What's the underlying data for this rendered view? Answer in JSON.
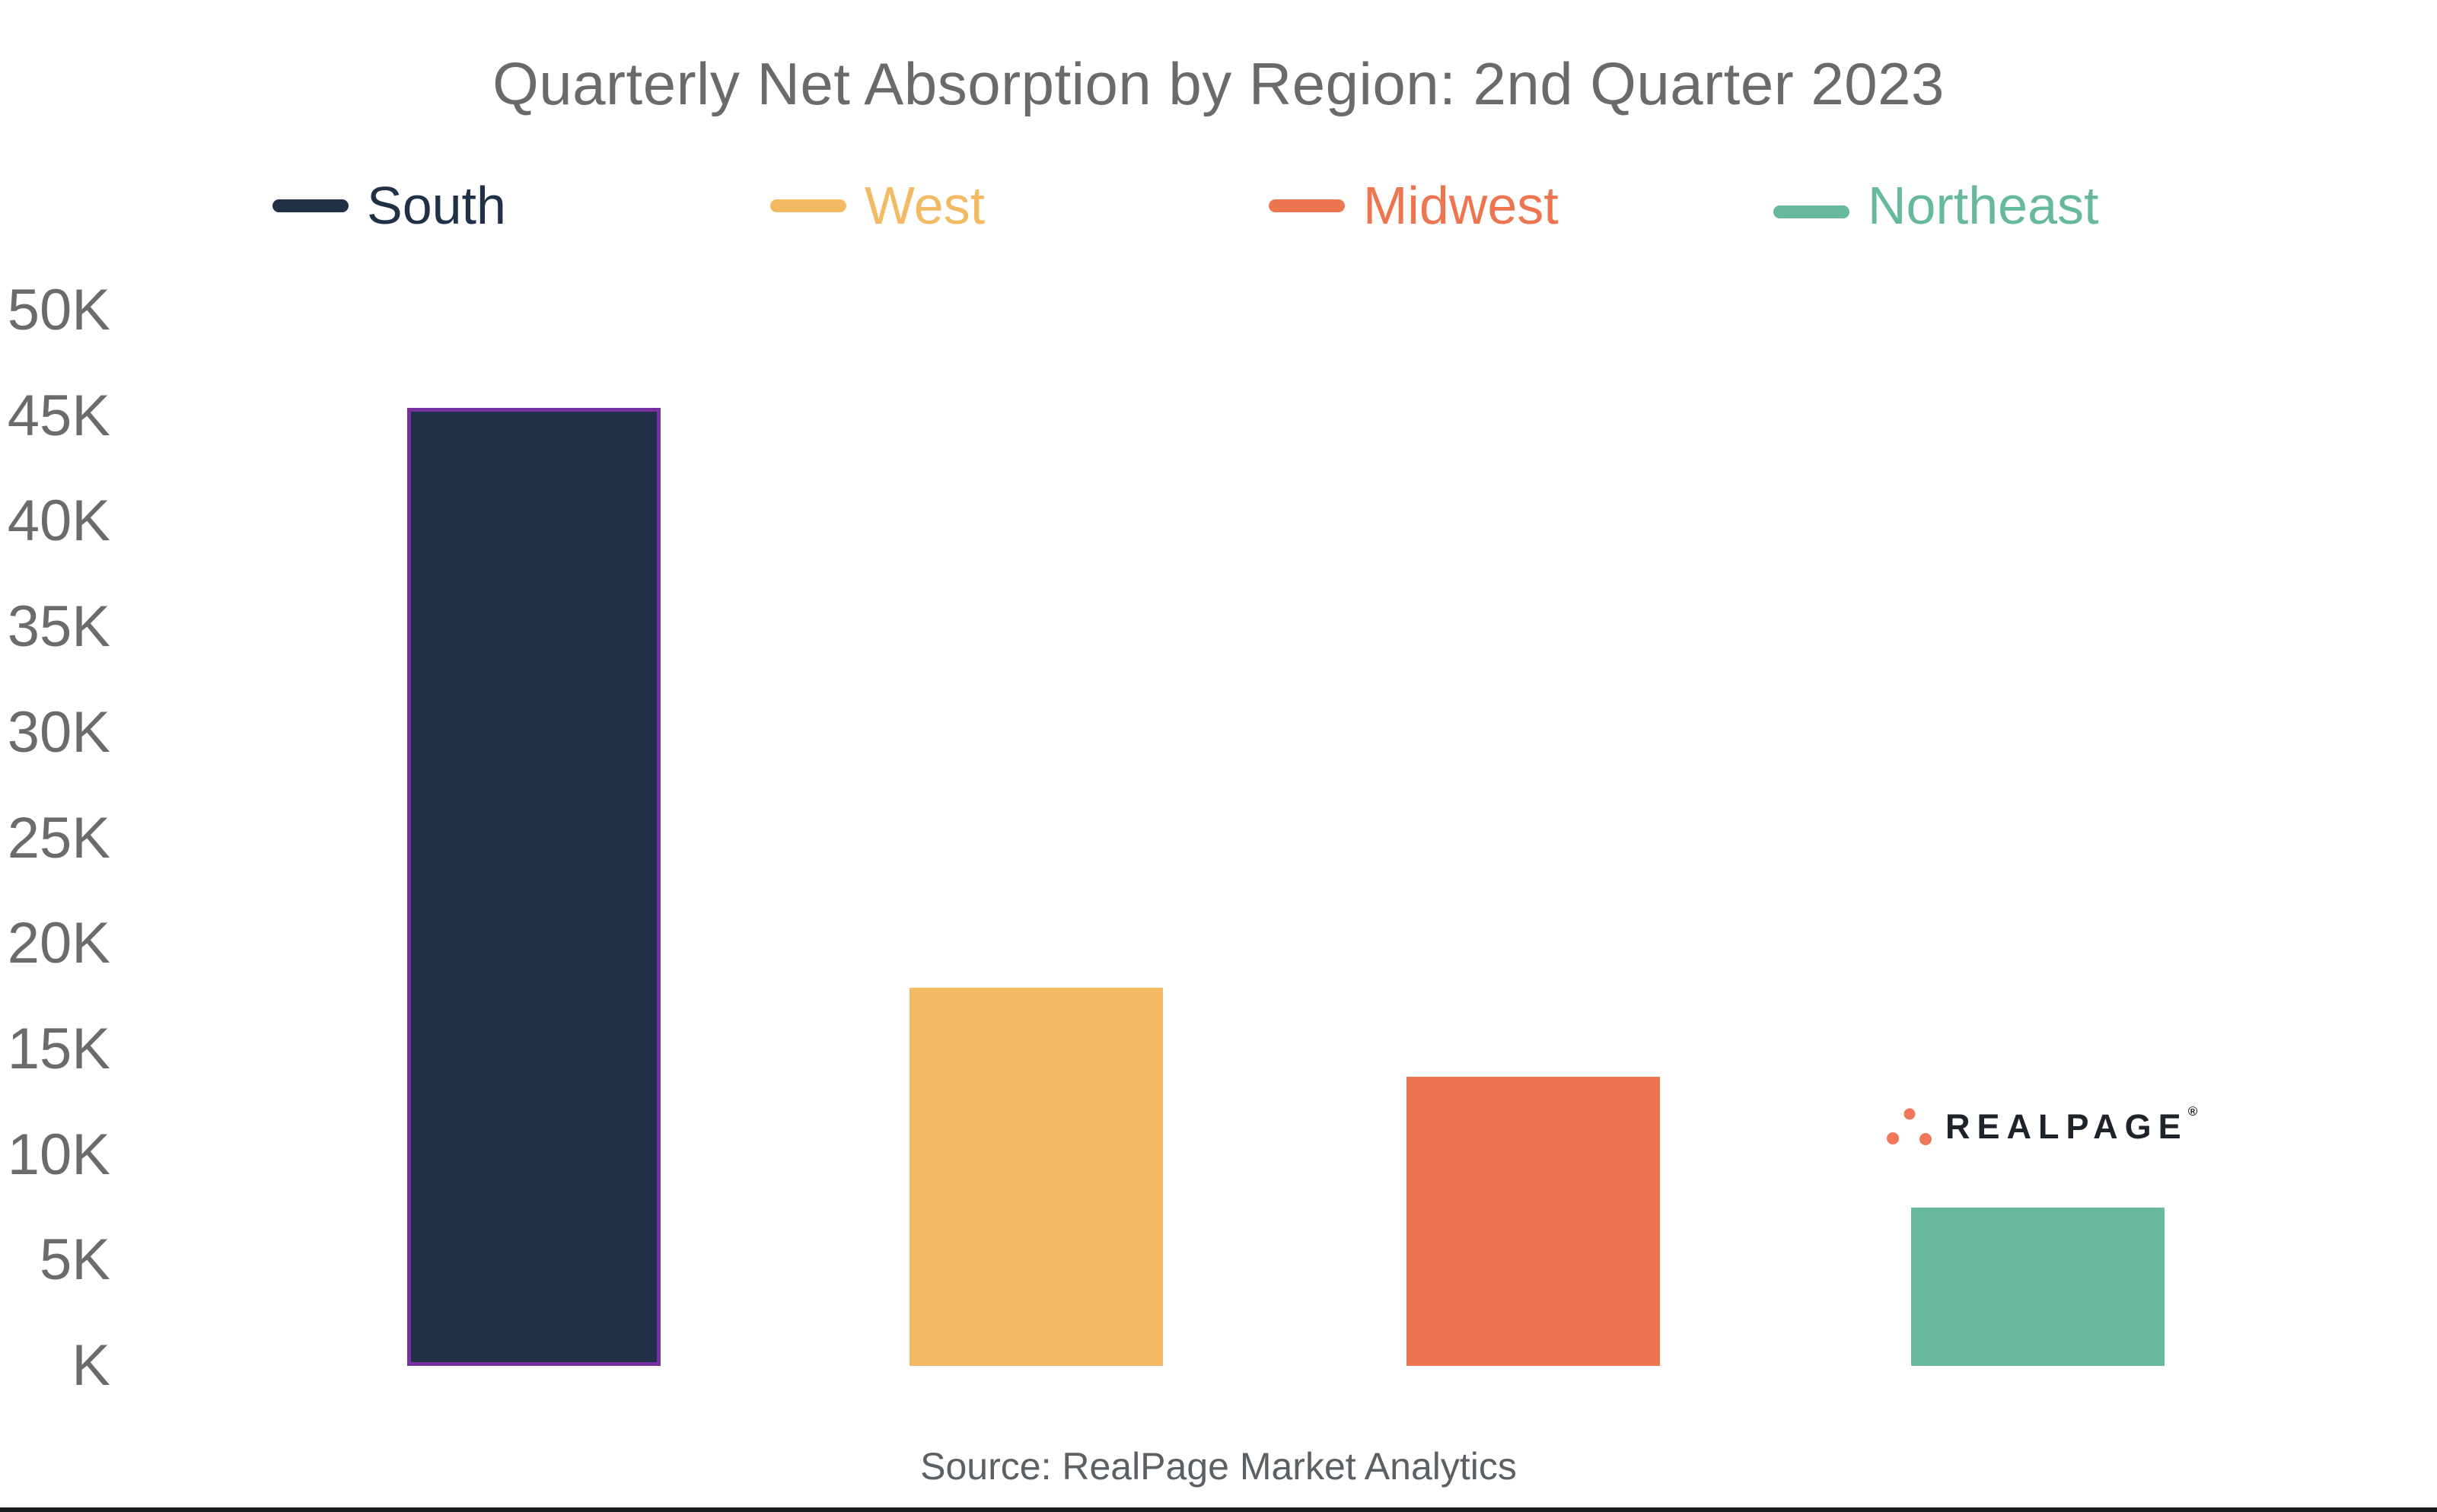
{
  "title": "Quarterly Net Absorption by Region: 2nd Quarter 2023",
  "legend": {
    "items": [
      {
        "label": "South",
        "color": "#1f3047"
      },
      {
        "label": "West",
        "color": "#f3b963"
      },
      {
        "label": "Midwest",
        "color": "#ed7550"
      },
      {
        "label": "Northeast",
        "color": "#66b89e"
      }
    ]
  },
  "y_axis": {
    "ticks": [
      {
        "label": "50K",
        "value": 50000
      },
      {
        "label": "45K",
        "value": 45000
      },
      {
        "label": "40K",
        "value": 40000
      },
      {
        "label": "35K",
        "value": 35000
      },
      {
        "label": "30K",
        "value": 30000
      },
      {
        "label": "25K",
        "value": 25000
      },
      {
        "label": "20K",
        "value": 20000
      },
      {
        "label": "15K",
        "value": 15000
      },
      {
        "label": "10K",
        "value": 10000
      },
      {
        "label": "5K",
        "value": 5000
      },
      {
        "label": "K",
        "value": 0
      }
    ]
  },
  "chart_data": {
    "type": "bar",
    "title": "Quarterly Net Absorption by Region: 2nd Quarter 2023",
    "categories": [
      "South",
      "West",
      "Midwest",
      "Northeast"
    ],
    "values": [
      45400,
      17900,
      13700,
      7500
    ],
    "colors": [
      "#1f3047",
      "#f3b963",
      "#ed7550",
      "#66b89e"
    ],
    "xlabel": "",
    "ylabel": "",
    "ylim": [
      0,
      50000
    ],
    "ytick_interval": 5000,
    "ytick_format": "K",
    "grid": false,
    "legend_position": "top",
    "selected_category": "South",
    "selection_outline_color": "#7630a0"
  },
  "logo": {
    "text": "REALPAGE",
    "registered_mark": "®",
    "dots_color": "#f0785a",
    "text_color": "#1d2329"
  },
  "source": "Source: RealPage Market Analytics"
}
